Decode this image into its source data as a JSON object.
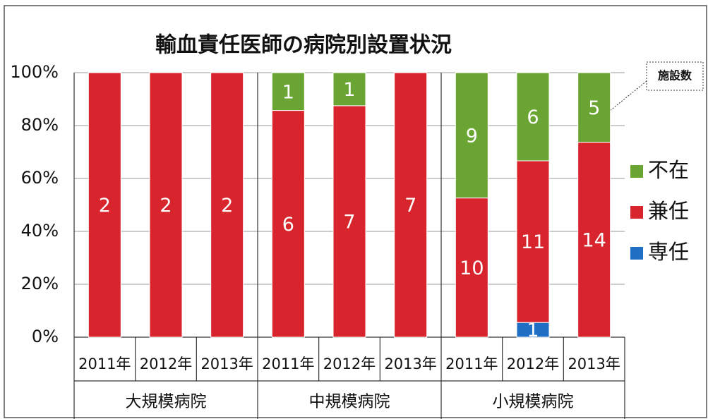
{
  "chart_data": {
    "type": "bar",
    "stacked": "percent",
    "title": "輸血責任医師の病院別設置状況",
    "annotation": "施設数",
    "categories": [
      "2011年",
      "2012年",
      "2013年",
      "2011年",
      "2012年",
      "2013年",
      "2011年",
      "2012年",
      "2013年"
    ],
    "groups": [
      "大規模病院",
      "中規模病院",
      "小規模病院"
    ],
    "series": [
      {
        "name": "専任",
        "color": "#1f6fc5",
        "values": [
          0,
          0,
          0,
          0,
          0,
          0,
          0,
          1,
          0
        ]
      },
      {
        "name": "兼任",
        "color": "#d8252d",
        "values": [
          2,
          2,
          2,
          6,
          7,
          7,
          10,
          11,
          14
        ]
      },
      {
        "name": "不在",
        "color": "#6aa533",
        "values": [
          0,
          0,
          0,
          1,
          1,
          0,
          9,
          6,
          5
        ]
      }
    ],
    "ylim": [
      0,
      100
    ],
    "yticks": [
      {
        "value": 0,
        "label": "0%"
      },
      {
        "value": 20,
        "label": "20%"
      },
      {
        "value": 40,
        "label": "40%"
      },
      {
        "value": 60,
        "label": "60%"
      },
      {
        "value": 80,
        "label": "80%"
      },
      {
        "value": 100,
        "label": "100%"
      }
    ],
    "grid": true,
    "legend": "right"
  }
}
